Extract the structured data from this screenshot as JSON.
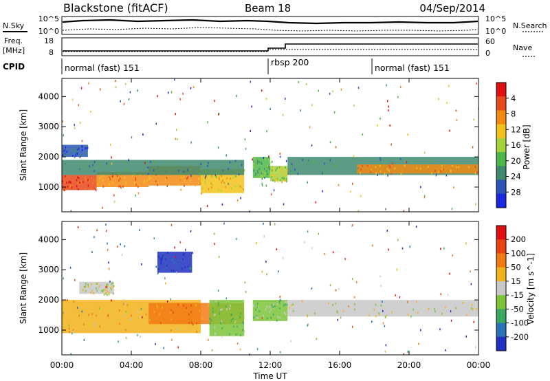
{
  "header": {
    "radar": "Blackstone (fitACF)",
    "beam": "Beam 18",
    "date": "04/Sep/2014"
  },
  "noise_panel": {
    "left_label": "N.Sky",
    "right_label": "N.Search",
    "left_ticks": [
      "10^5",
      "10^0"
    ],
    "right_ticks": [
      "10^5",
      "10^0"
    ]
  },
  "freq_panel": {
    "left_label_1": "Freq.",
    "left_label_2": "[MHz]",
    "right_label": "Nave",
    "left_ticks": [
      "18",
      "8"
    ],
    "right_ticks": [
      "60",
      "0"
    ]
  },
  "cpid": {
    "label": "CPID",
    "segments": [
      {
        "text": "normal (fast) 151",
        "start_hour": 0
      },
      {
        "text": "rbsp 200",
        "start_hour": 12
      },
      {
        "text": "normal (fast) 151",
        "start_hour": 18
      }
    ]
  },
  "x_axis": {
    "label": "Time UT",
    "ticks": [
      "00:00",
      "04:00",
      "08:00",
      "12:00",
      "16:00",
      "20:00",
      "00:00"
    ],
    "tick_hours": [
      0,
      4,
      8,
      12,
      16,
      20,
      24
    ],
    "range_hours": [
      0,
      24
    ]
  },
  "power_panel": {
    "ylabel": "Slant Range [km]",
    "yticks": [
      "1000",
      "2000",
      "3000",
      "4000"
    ],
    "ytick_values": [
      1000,
      2000,
      3000,
      4000
    ],
    "ylim": [
      180,
      4600
    ],
    "colorbar_label": "Power [dB]",
    "colorbar_ticks": [
      "4",
      "8",
      "12",
      "16",
      "20",
      "24",
      "28"
    ],
    "colorbar_colors": [
      "#1a28e0",
      "#2a55b8",
      "#3f8a6e",
      "#4db84a",
      "#a6d23a",
      "#f2c21a",
      "#f28a14",
      "#e8481a",
      "#e01010"
    ]
  },
  "velocity_panel": {
    "ylabel": "Slant Range [km]",
    "yticks": [
      "1000",
      "2000",
      "3000",
      "4000"
    ],
    "ytick_values": [
      1000,
      2000,
      3000,
      4000
    ],
    "ylim": [
      180,
      4600
    ],
    "colorbar_label": "Velocity [m s^-1]",
    "colorbar_ticks": [
      "200",
      "100",
      "50",
      "15",
      "-15",
      "-50",
      "-100",
      "-200"
    ],
    "colorbar_colors": [
      "#2030c0",
      "#2a72b8",
      "#3aa860",
      "#7cc43a",
      "#c8c8c8",
      "#f2b21a",
      "#f27a14",
      "#e84414",
      "#e01010"
    ]
  },
  "chart_data": {
    "type": "heatmap",
    "power_bands": [
      {
        "t0": 0.0,
        "t1": 2.0,
        "r0": 900,
        "r1": 1400,
        "level": 7
      },
      {
        "t0": 2.0,
        "t1": 5.0,
        "r0": 1000,
        "r1": 1500,
        "level": 6
      },
      {
        "t0": 5.0,
        "t1": 8.0,
        "r0": 1050,
        "r1": 1700,
        "level": 6
      },
      {
        "t0": 8.0,
        "t1": 10.5,
        "r0": 800,
        "r1": 1600,
        "level": 5
      },
      {
        "t0": 0.0,
        "t1": 10.5,
        "r0": 1400,
        "r1": 1900,
        "level": 2
      },
      {
        "t0": 0.0,
        "t1": 1.5,
        "r0": 2000,
        "r1": 2400,
        "level": 1
      },
      {
        "t0": 11.0,
        "t1": 12.0,
        "r0": 1300,
        "r1": 2000,
        "level": 3
      },
      {
        "t0": 12.0,
        "t1": 13.0,
        "r0": 1200,
        "r1": 1700,
        "level": 4
      },
      {
        "t0": 13.0,
        "t1": 24.0,
        "r0": 1400,
        "r1": 2000,
        "level": 2
      },
      {
        "t0": 17.0,
        "t1": 24.0,
        "r0": 1450,
        "r1": 1750,
        "level": 6
      }
    ],
    "velocity_bands": [
      {
        "t0": 0.0,
        "t1": 8.0,
        "r0": 900,
        "r1": 2000,
        "level": 5
      },
      {
        "t0": 5.0,
        "t1": 10.5,
        "r0": 1200,
        "r1": 1900,
        "level": 6
      },
      {
        "t0": 8.5,
        "t1": 10.5,
        "r0": 800,
        "r1": 2000,
        "level": 3
      },
      {
        "t0": 5.5,
        "t1": 7.5,
        "r0": 2900,
        "r1": 3600,
        "level": 0
      },
      {
        "t0": 1.0,
        "t1": 3.0,
        "r0": 2200,
        "r1": 2600,
        "level": 4
      },
      {
        "t0": 11.0,
        "t1": 13.0,
        "r0": 1300,
        "r1": 2000,
        "level": 3
      },
      {
        "t0": 13.0,
        "t1": 24.0,
        "r0": 1450,
        "r1": 2000,
        "level": 4
      }
    ]
  }
}
